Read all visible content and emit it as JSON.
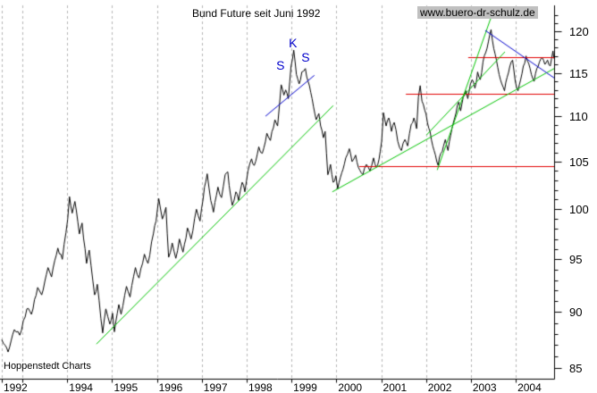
{
  "header": {
    "title": "Bund Future seit Juni 1992",
    "website": "www.buero-dr-schulz.de"
  },
  "footer": {
    "source": "Hoppenstedt Charts"
  },
  "colors": {
    "price": "#000000",
    "trend_green": "#00c300",
    "pattern_blue": "#0000cc",
    "level_red": "#e00000",
    "grid": "#b5b5b5",
    "axis": "#000000",
    "website_bg": "#c0c0c0"
  },
  "chart_data": {
    "type": "line",
    "title": "Bund Future seit Juni 1992",
    "scale_y": "log",
    "ylim": [
      84,
      123
    ],
    "xlim": [
      1992.5,
      2004.95
    ],
    "legend": "none",
    "grid": "vertical-dashed-yearly",
    "y_ticks_major": [
      120,
      115,
      110,
      105,
      100,
      95,
      90,
      85
    ],
    "y_tick_minor_step": 1,
    "y_minor_range": [
      85,
      122
    ],
    "x_gridline_years": [
      1992.54,
      1993,
      1994,
      1995,
      1996,
      1997,
      1998,
      1999,
      2000,
      2001,
      2002,
      2003,
      2004
    ],
    "x_tick_labels": [
      {
        "label": "1992",
        "year": 1992.54
      },
      {
        "label": "1994",
        "year": 1994
      },
      {
        "label": "1995",
        "year": 1995
      },
      {
        "label": "1996",
        "year": 1996
      },
      {
        "label": "1997",
        "year": 1997
      },
      {
        "label": "1998",
        "year": 1998
      },
      {
        "label": "1999",
        "year": 1999
      },
      {
        "label": "2000",
        "year": 2000
      },
      {
        "label": "2001",
        "year": 2001
      },
      {
        "label": "2002",
        "year": 2002
      },
      {
        "label": "2003",
        "year": 2003
      },
      {
        "label": "2004",
        "year": 2004
      }
    ],
    "series": [
      [
        1992.54,
        87.5
      ],
      [
        1992.68,
        86.4
      ],
      [
        1992.82,
        88.4
      ],
      [
        1992.94,
        87.9
      ],
      [
        1993.1,
        90.3
      ],
      [
        1993.2,
        89.8
      ],
      [
        1993.34,
        92.3
      ],
      [
        1993.43,
        91.6
      ],
      [
        1993.57,
        94.2
      ],
      [
        1993.65,
        93.3
      ],
      [
        1993.79,
        96.1
      ],
      [
        1993.89,
        95.0
      ],
      [
        1994.01,
        99.0
      ],
      [
        1994.05,
        101.3
      ],
      [
        1994.11,
        99.6
      ],
      [
        1994.17,
        100.8
      ],
      [
        1994.27,
        97.5
      ],
      [
        1994.33,
        98.6
      ],
      [
        1994.43,
        94.6
      ],
      [
        1994.49,
        95.9
      ],
      [
        1994.61,
        91.6
      ],
      [
        1994.67,
        92.6
      ],
      [
        1994.79,
        88.1
      ],
      [
        1994.86,
        90.3
      ],
      [
        1994.95,
        88.9
      ],
      [
        1995.01,
        89.9
      ],
      [
        1995.05,
        88.2
      ],
      [
        1995.15,
        90.7
      ],
      [
        1995.2,
        89.8
      ],
      [
        1995.32,
        92.4
      ],
      [
        1995.4,
        91.4
      ],
      [
        1995.52,
        94.2
      ],
      [
        1995.6,
        93.2
      ],
      [
        1995.72,
        95.5
      ],
      [
        1995.8,
        94.6
      ],
      [
        1995.92,
        97.5
      ],
      [
        1995.98,
        98.8
      ],
      [
        1996.04,
        101.1
      ],
      [
        1996.12,
        99.0
      ],
      [
        1996.2,
        100.2
      ],
      [
        1996.26,
        95.2
      ],
      [
        1996.34,
        96.6
      ],
      [
        1996.42,
        95.1
      ],
      [
        1996.5,
        97.0
      ],
      [
        1996.58,
        95.7
      ],
      [
        1996.68,
        98.1
      ],
      [
        1996.76,
        97.0
      ],
      [
        1996.88,
        100.0
      ],
      [
        1996.96,
        98.8
      ],
      [
        1997.06,
        102.3
      ],
      [
        1997.12,
        103.7
      ],
      [
        1997.2,
        100.9
      ],
      [
        1997.26,
        99.7
      ],
      [
        1997.36,
        102.3
      ],
      [
        1997.44,
        101.2
      ],
      [
        1997.52,
        103.6
      ],
      [
        1997.58,
        103.9
      ],
      [
        1997.64,
        101.5
      ],
      [
        1997.68,
        100.4
      ],
      [
        1997.76,
        101.8
      ],
      [
        1997.82,
        100.9
      ],
      [
        1997.9,
        102.8
      ],
      [
        1997.96,
        101.8
      ],
      [
        1998.03,
        104.0
      ],
      [
        1998.11,
        105.3
      ],
      [
        1998.17,
        104.6
      ],
      [
        1998.27,
        106.6
      ],
      [
        1998.35,
        105.9
      ],
      [
        1998.45,
        108.1
      ],
      [
        1998.53,
        107.3
      ],
      [
        1998.63,
        109.6
      ],
      [
        1998.69,
        108.9
      ],
      [
        1998.77,
        113.6
      ],
      [
        1998.83,
        112.4
      ],
      [
        1998.87,
        113.0
      ],
      [
        1998.93,
        112.0
      ],
      [
        1998.99,
        115.8
      ],
      [
        1999.05,
        117.7
      ],
      [
        1999.11,
        114.8
      ],
      [
        1999.17,
        113.7
      ],
      [
        1999.23,
        115.1
      ],
      [
        1999.31,
        115.5
      ],
      [
        1999.37,
        114.0
      ],
      [
        1999.43,
        112.7
      ],
      [
        1999.49,
        111.1
      ],
      [
        1999.55,
        109.6
      ],
      [
        1999.61,
        110.3
      ],
      [
        1999.65,
        108.9
      ],
      [
        1999.71,
        107.6
      ],
      [
        1999.75,
        108.3
      ],
      [
        1999.81,
        103.6
      ],
      [
        1999.87,
        104.7
      ],
      [
        1999.93,
        102.8
      ],
      [
        1999.99,
        103.5
      ],
      [
        2000.03,
        102.1
      ],
      [
        2000.09,
        103.3
      ],
      [
        2000.15,
        104.2
      ],
      [
        2000.21,
        105.4
      ],
      [
        2000.29,
        106.4
      ],
      [
        2000.35,
        105.0
      ],
      [
        2000.43,
        105.7
      ],
      [
        2000.49,
        104.4
      ],
      [
        2000.59,
        103.6
      ],
      [
        2000.67,
        104.7
      ],
      [
        2000.75,
        104.0
      ],
      [
        2000.83,
        105.4
      ],
      [
        2000.89,
        104.4
      ],
      [
        2000.95,
        105.2
      ],
      [
        2001.01,
        107.2
      ],
      [
        2001.05,
        110.4
      ],
      [
        2001.11,
        108.9
      ],
      [
        2001.17,
        109.8
      ],
      [
        2001.23,
        108.3
      ],
      [
        2001.29,
        109.3
      ],
      [
        2001.37,
        107.2
      ],
      [
        2001.45,
        106.2
      ],
      [
        2001.53,
        107.4
      ],
      [
        2001.59,
        106.7
      ],
      [
        2001.67,
        109.1
      ],
      [
        2001.73,
        109.8
      ],
      [
        2001.79,
        108.6
      ],
      [
        2001.83,
        112.2
      ],
      [
        2001.87,
        113.5
      ],
      [
        2001.91,
        111.7
      ],
      [
        2001.97,
        110.7
      ],
      [
        2002.03,
        109.3
      ],
      [
        2002.09,
        108.3
      ],
      [
        2002.15,
        106.7
      ],
      [
        2002.21,
        105.7
      ],
      [
        2002.27,
        104.6
      ],
      [
        2002.33,
        105.9
      ],
      [
        2002.39,
        106.7
      ],
      [
        2002.43,
        107.4
      ],
      [
        2002.49,
        106.2
      ],
      [
        2002.55,
        107.9
      ],
      [
        2002.61,
        109.3
      ],
      [
        2002.67,
        110.4
      ],
      [
        2002.73,
        111.6
      ],
      [
        2002.77,
        110.6
      ],
      [
        2002.83,
        112.2
      ],
      [
        2002.89,
        112.9
      ],
      [
        2002.93,
        112.0
      ],
      [
        2002.99,
        113.7
      ],
      [
        2003.03,
        114.2
      ],
      [
        2003.09,
        113.2
      ],
      [
        2003.15,
        115.1
      ],
      [
        2003.21,
        114.2
      ],
      [
        2003.27,
        116.3
      ],
      [
        2003.33,
        117.4
      ],
      [
        2003.39,
        118.7
      ],
      [
        2003.45,
        120.2
      ],
      [
        2003.51,
        117.9
      ],
      [
        2003.57,
        116.5
      ],
      [
        2003.63,
        114.8
      ],
      [
        2003.69,
        113.7
      ],
      [
        2003.75,
        112.9
      ],
      [
        2003.81,
        114.5
      ],
      [
        2003.87,
        115.8
      ],
      [
        2003.93,
        116.5
      ],
      [
        2003.99,
        114.0
      ],
      [
        2004.05,
        112.9
      ],
      [
        2004.11,
        114.2
      ],
      [
        2004.17,
        115.8
      ],
      [
        2004.23,
        117.0
      ],
      [
        2004.29,
        116.1
      ],
      [
        2004.35,
        114.8
      ],
      [
        2004.41,
        114.0
      ],
      [
        2004.47,
        115.5
      ],
      [
        2004.53,
        116.3
      ],
      [
        2004.59,
        116.8
      ],
      [
        2004.65,
        116.0
      ],
      [
        2004.71,
        116.5
      ],
      [
        2004.77,
        115.8
      ],
      [
        2004.83,
        117.6
      ],
      [
        2004.85,
        116.7
      ]
    ],
    "trendlines_green": [
      {
        "name": "uptrend-1994-2000",
        "x1": 1994.65,
        "v1": 87.1,
        "x2": 1999.93,
        "v2": 111.2
      },
      {
        "name": "uptrend-2000-2004",
        "x1": 1999.91,
        "v1": 101.8,
        "x2": 2004.86,
        "v2": 115.5
      },
      {
        "name": "steep-uptrend-2002-2003",
        "x1": 2002.25,
        "v1": 104.1,
        "x2": 2003.48,
        "v2": 122.2
      },
      {
        "name": "uptrend-2002-2003b",
        "x1": 2002.01,
        "v1": 107.9,
        "x2": 2003.76,
        "v2": 117.5
      }
    ],
    "trendlines_blue": [
      {
        "name": "hs-neckline",
        "x1": 1998.42,
        "v1": 110.0,
        "x2": 1999.51,
        "v2": 114.7
      },
      {
        "name": "downtrend-2003-2004",
        "x1": 2003.32,
        "v1": 120.1,
        "x2": 2004.86,
        "v2": 114.4
      }
    ],
    "levels_red": [
      {
        "name": "resistance-117",
        "value": 116.9,
        "x1": 2002.94,
        "x2": 2004.9
      },
      {
        "name": "resistance-112-7",
        "value": 112.6,
        "x1": 2001.55,
        "x2": 2004.9
      },
      {
        "name": "support-104-5",
        "value": 104.5,
        "x1": 2000.51,
        "x2": 2004.9
      }
    ],
    "annotations": [
      {
        "text": "S",
        "year": 1998.74,
        "value": 115.9
      },
      {
        "text": "K",
        "year": 1999.02,
        "value": 118.6
      },
      {
        "text": "S",
        "year": 1999.3,
        "value": 116.9
      }
    ]
  }
}
